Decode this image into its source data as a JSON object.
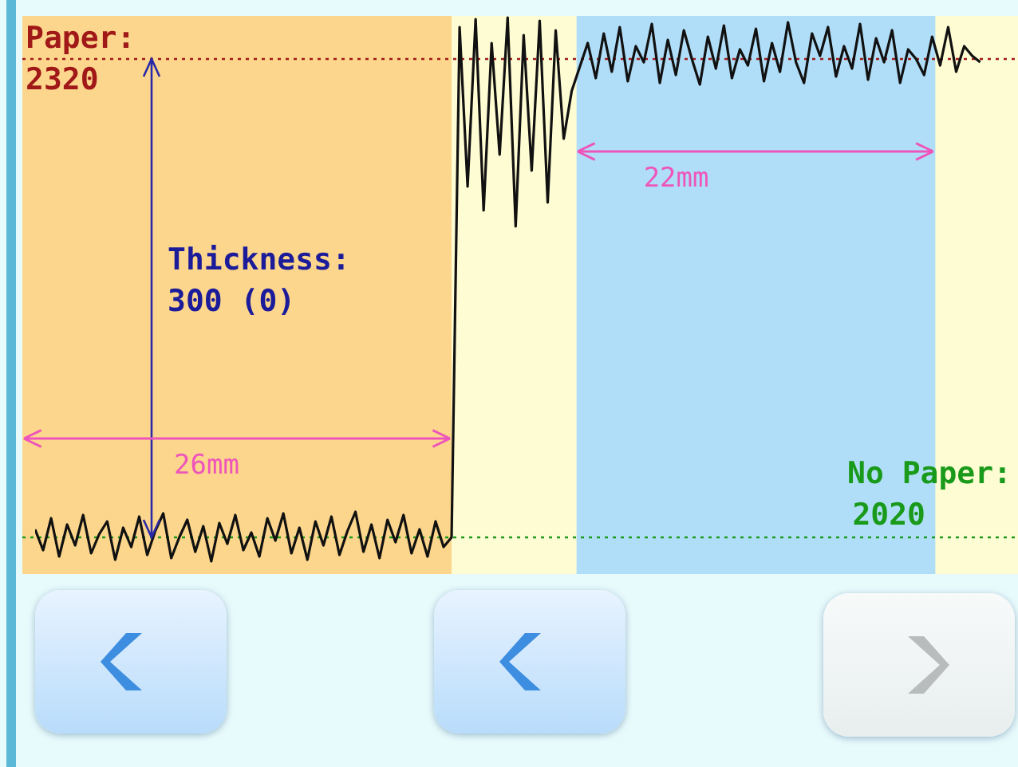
{
  "chart_data": {
    "type": "line",
    "ylim": [
      1997,
      2347
    ],
    "marker": "none",
    "line_style": "solid",
    "categories": [
      null,
      null,
      null,
      null,
      null,
      null,
      null,
      null,
      null,
      null,
      null,
      null,
      null,
      null,
      null,
      null,
      null,
      null,
      null,
      null,
      null,
      null,
      null,
      null,
      null,
      null,
      null,
      null,
      null,
      null,
      null,
      null,
      null,
      null,
      null,
      null,
      null,
      null,
      null,
      null,
      null,
      null,
      null,
      null,
      null,
      null,
      null,
      null,
      null,
      null,
      null,
      null,
      null,
      null,
      null,
      null,
      null,
      null,
      null,
      null,
      null,
      null,
      null,
      null,
      null,
      null,
      null,
      null,
      null,
      null,
      null,
      null,
      null,
      null,
      null,
      null,
      null,
      null,
      null,
      null,
      null,
      null,
      null,
      null,
      null,
      null,
      null,
      null,
      null,
      null,
      null,
      null,
      null,
      null,
      null,
      null,
      null,
      null,
      null,
      null,
      null,
      null,
      null,
      null,
      null,
      null,
      null,
      null,
      null,
      null,
      null,
      null,
      null,
      null,
      null,
      null,
      null,
      null,
      null
    ],
    "ref_lines": [
      {
        "axis": "y",
        "value": 2320,
        "label": "Paper: 2320",
        "color": "#a01818",
        "line_style": "dotted"
      },
      {
        "axis": "y",
        "value": 2020,
        "label": "No Paper: 2020",
        "color": "#1a9a1a",
        "line_style": "dotted"
      }
    ],
    "annotations": [
      "Thickness: 300 (0)",
      "26mm",
      "22mm"
    ],
    "series": [
      {
        "color": "#111111",
        "values": [
          2025,
          2012,
          2032,
          2008,
          2028,
          2015,
          2034,
          2010,
          2022,
          2030,
          2006,
          2026,
          2014,
          2033,
          2009,
          2024,
          2035,
          2007,
          2020,
          2031,
          2011,
          2027,
          2005,
          2029,
          2016,
          2034,
          2012,
          2023,
          2008,
          2032,
          2018,
          2035,
          2010,
          2026,
          2006,
          2030,
          2015,
          2033,
          2009,
          2024,
          2036,
          2011,
          2028,
          2007,
          2031,
          2017,
          2034,
          2010,
          2025,
          2008,
          2030,
          2014,
          2020,
          2340,
          2240,
          2345,
          2225,
          2330,
          2260,
          2346,
          2215,
          2335,
          2250,
          2344,
          2230,
          2338,
          2270,
          2300,
          2315,
          2330,
          2308,
          2336,
          2312,
          2340,
          2306,
          2328,
          2318,
          2342,
          2305,
          2332,
          2310,
          2338,
          2320,
          2304,
          2334,
          2314,
          2341,
          2308,
          2326,
          2316,
          2339,
          2306,
          2330,
          2312,
          2343,
          2318,
          2305,
          2336,
          2322,
          2340,
          2309,
          2328,
          2314,
          2342,
          2307,
          2333,
          2318,
          2338,
          2305,
          2326,
          2320,
          2310,
          2334,
          2316,
          2340,
          2312,
          2328,
          2322,
          2318
        ]
      }
    ]
  }
}
